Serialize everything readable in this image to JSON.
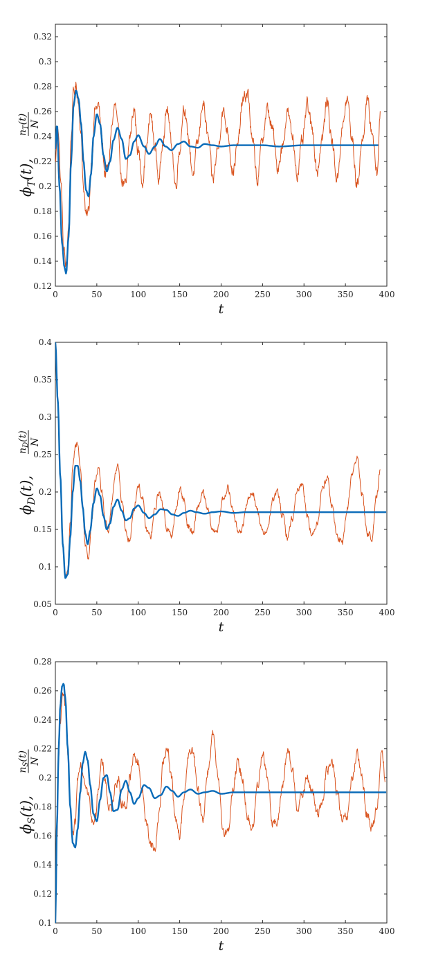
{
  "colors": {
    "blue": "#0a6bb8",
    "orange": "#d9531e",
    "axis": "#262626"
  },
  "chart_data": [
    {
      "type": "line",
      "title": "",
      "xlabel": "t",
      "ylabel": "ϕT(t), nT(t)/N",
      "ylabel_parts": {
        "phi": "ϕ",
        "phi_sub": "T",
        "arg": "(t),",
        "frac_num": "n",
        "frac_num_sub": "T",
        "frac_num_arg": "(t)",
        "frac_den": "N"
      },
      "xlim": [
        0,
        400
      ],
      "ylim": [
        0.12,
        0.33
      ],
      "xticks": [
        "0",
        "50",
        "100",
        "150",
        "200",
        "250",
        "300",
        "350",
        "400"
      ],
      "yticks": [
        "0.12",
        "0.14",
        "0.16",
        "0.18",
        "0.2",
        "0.22",
        "0.24",
        "0.26",
        "0.28",
        "0.3",
        "0.32"
      ],
      "series": [
        {
          "color": "#0a6bb8",
          "x": [
            0,
            2,
            5,
            8,
            11,
            13,
            16,
            19,
            22,
            25,
            28,
            31,
            34,
            37,
            40,
            43,
            46,
            50,
            54,
            58,
            62,
            66,
            70,
            75,
            80,
            85,
            90,
            95,
            100,
            107,
            113,
            120,
            126,
            133,
            140,
            148,
            155,
            163,
            172,
            180,
            190,
            200,
            215,
            230,
            250,
            270,
            300,
            330,
            360,
            390
          ],
          "y": [
            0.23,
            0.25,
            0.2,
            0.155,
            0.135,
            0.13,
            0.16,
            0.22,
            0.265,
            0.277,
            0.27,
            0.25,
            0.22,
            0.197,
            0.192,
            0.21,
            0.24,
            0.258,
            0.25,
            0.225,
            0.212,
            0.22,
            0.237,
            0.247,
            0.238,
            0.222,
            0.225,
            0.236,
            0.241,
            0.232,
            0.226,
            0.232,
            0.238,
            0.232,
            0.229,
            0.234,
            0.236,
            0.232,
            0.231,
            0.234,
            0.233,
            0.232,
            0.233,
            0.233,
            0.233,
            0.232,
            0.233,
            0.233,
            0.233,
            0.233
          ]
        },
        {
          "color": "#d9531e",
          "noise": 0.009,
          "x": [
            0,
            3,
            7,
            10,
            13,
            16,
            19,
            22,
            25,
            28,
            31,
            34,
            37,
            40,
            44,
            48,
            52,
            56,
            60,
            64,
            68,
            72,
            76,
            80,
            85,
            90,
            95,
            100,
            105,
            110,
            115,
            120,
            125,
            130,
            135,
            140,
            145,
            150,
            155,
            160,
            166,
            172,
            178,
            184,
            190,
            196,
            202,
            208,
            214,
            220,
            226,
            232,
            238,
            244,
            250,
            256,
            262,
            268,
            274,
            280,
            286,
            292,
            298,
            304,
            310,
            316,
            322,
            328,
            334,
            340,
            346,
            352,
            358,
            364,
            370,
            376,
            382,
            388,
            392
          ],
          "y": [
            0.22,
            0.25,
            0.2,
            0.15,
            0.135,
            0.17,
            0.24,
            0.275,
            0.28,
            0.268,
            0.24,
            0.2,
            0.175,
            0.18,
            0.225,
            0.262,
            0.265,
            0.238,
            0.21,
            0.215,
            0.248,
            0.265,
            0.242,
            0.205,
            0.2,
            0.24,
            0.262,
            0.228,
            0.205,
            0.232,
            0.258,
            0.232,
            0.205,
            0.24,
            0.262,
            0.235,
            0.2,
            0.23,
            0.265,
            0.24,
            0.21,
            0.235,
            0.268,
            0.24,
            0.205,
            0.23,
            0.26,
            0.245,
            0.212,
            0.232,
            0.268,
            0.275,
            0.235,
            0.205,
            0.24,
            0.262,
            0.245,
            0.215,
            0.232,
            0.26,
            0.24,
            0.21,
            0.235,
            0.265,
            0.245,
            0.212,
            0.24,
            0.268,
            0.235,
            0.205,
            0.245,
            0.27,
            0.238,
            0.2,
            0.235,
            0.268,
            0.245,
            0.21,
            0.258
          ]
        }
      ]
    },
    {
      "type": "line",
      "title": "",
      "xlabel": "t",
      "ylabel": "ϕD(t), nD(t)/N",
      "ylabel_parts": {
        "phi": "ϕ",
        "phi_sub": "D",
        "arg": "(t),",
        "frac_num": "n",
        "frac_num_sub": "D",
        "frac_num_arg": "(t)",
        "frac_den": "N"
      },
      "xlim": [
        0,
        400
      ],
      "ylim": [
        0.05,
        0.4
      ],
      "xticks": [
        "0",
        "50",
        "100",
        "150",
        "200",
        "250",
        "300",
        "350",
        "400"
      ],
      "yticks": [
        "0.05",
        "0.1",
        "0.15",
        "0.2",
        "0.25",
        "0.3",
        "0.35",
        "0.4"
      ],
      "series": [
        {
          "color": "#0a6bb8",
          "x": [
            0,
            3,
            6,
            9,
            12,
            15,
            18,
            21,
            24,
            27,
            30,
            33,
            36,
            39,
            42,
            46,
            50,
            54,
            58,
            62,
            66,
            70,
            75,
            80,
            85,
            90,
            95,
            100,
            107,
            113,
            120,
            127,
            134,
            141,
            148,
            155,
            163,
            170,
            180,
            190,
            200,
            215,
            230,
            250,
            270,
            300,
            330,
            360,
            400
          ],
          "y": [
            0.4,
            0.32,
            0.22,
            0.13,
            0.085,
            0.09,
            0.14,
            0.2,
            0.235,
            0.235,
            0.215,
            0.18,
            0.145,
            0.13,
            0.148,
            0.185,
            0.205,
            0.195,
            0.168,
            0.15,
            0.158,
            0.18,
            0.19,
            0.175,
            0.162,
            0.165,
            0.178,
            0.182,
            0.172,
            0.165,
            0.17,
            0.177,
            0.176,
            0.17,
            0.168,
            0.172,
            0.175,
            0.173,
            0.171,
            0.173,
            0.174,
            0.172,
            0.173,
            0.173,
            0.173,
            0.173,
            0.173,
            0.173,
            0.173
          ]
        },
        {
          "color": "#d9531e",
          "noise": 0.008,
          "x": [
            0,
            3,
            6,
            9,
            12,
            15,
            18,
            21,
            24,
            27,
            30,
            33,
            36,
            40,
            44,
            48,
            52,
            56,
            60,
            64,
            68,
            72,
            76,
            80,
            85,
            90,
            95,
            100,
            105,
            110,
            115,
            120,
            125,
            130,
            135,
            140,
            145,
            150,
            155,
            160,
            166,
            172,
            178,
            184,
            190,
            196,
            202,
            208,
            214,
            220,
            226,
            232,
            238,
            244,
            250,
            256,
            262,
            268,
            274,
            280,
            286,
            292,
            298,
            304,
            310,
            316,
            322,
            328,
            334,
            340,
            346,
            352,
            358,
            364,
            370,
            376,
            382,
            388,
            392
          ],
          "y": [
            0.4,
            0.32,
            0.22,
            0.13,
            0.085,
            0.095,
            0.16,
            0.23,
            0.262,
            0.265,
            0.235,
            0.18,
            0.128,
            0.112,
            0.16,
            0.215,
            0.232,
            0.2,
            0.16,
            0.15,
            0.185,
            0.222,
            0.232,
            0.19,
            0.145,
            0.135,
            0.18,
            0.21,
            0.19,
            0.148,
            0.14,
            0.175,
            0.2,
            0.18,
            0.15,
            0.14,
            0.172,
            0.205,
            0.19,
            0.155,
            0.145,
            0.18,
            0.198,
            0.175,
            0.148,
            0.15,
            0.19,
            0.205,
            0.178,
            0.148,
            0.152,
            0.19,
            0.2,
            0.175,
            0.145,
            0.15,
            0.188,
            0.2,
            0.168,
            0.14,
            0.165,
            0.205,
            0.21,
            0.17,
            0.14,
            0.16,
            0.205,
            0.22,
            0.18,
            0.14,
            0.13,
            0.175,
            0.225,
            0.245,
            0.2,
            0.145,
            0.14,
            0.195,
            0.228
          ]
        }
      ]
    },
    {
      "type": "line",
      "title": "",
      "xlabel": "t",
      "ylabel": "ϕS(t), nS(t)/N",
      "ylabel_parts": {
        "phi": "ϕ",
        "phi_sub": "S",
        "arg": "(t),",
        "frac_num": "n",
        "frac_num_sub": "S",
        "frac_num_arg": "(t)",
        "frac_den": "N"
      },
      "xlim": [
        0,
        400
      ],
      "ylim": [
        0.1,
        0.28
      ],
      "xticks": [
        "0",
        "50",
        "100",
        "150",
        "200",
        "250",
        "300",
        "350",
        "400"
      ],
      "yticks": [
        "0.1",
        "0.12",
        "0.14",
        "0.16",
        "0.18",
        "0.2",
        "0.22",
        "0.24",
        "0.26",
        "0.28"
      ],
      "series": [
        {
          "color": "#0a6bb8",
          "x": [
            0,
            2,
            4,
            6,
            8,
            10,
            12,
            15,
            18,
            21,
            24,
            27,
            30,
            33,
            36,
            39,
            42,
            46,
            50,
            54,
            58,
            62,
            66,
            70,
            75,
            80,
            85,
            90,
            95,
            100,
            107,
            113,
            120,
            127,
            134,
            141,
            148,
            155,
            163,
            172,
            180,
            190,
            200,
            215,
            230,
            250,
            270,
            300,
            330,
            360,
            400
          ],
          "y": [
            0.1,
            0.17,
            0.22,
            0.25,
            0.263,
            0.265,
            0.255,
            0.22,
            0.18,
            0.155,
            0.152,
            0.165,
            0.19,
            0.21,
            0.218,
            0.212,
            0.195,
            0.175,
            0.17,
            0.185,
            0.2,
            0.202,
            0.19,
            0.177,
            0.178,
            0.192,
            0.198,
            0.19,
            0.182,
            0.186,
            0.195,
            0.193,
            0.186,
            0.188,
            0.194,
            0.191,
            0.187,
            0.19,
            0.192,
            0.189,
            0.19,
            0.191,
            0.189,
            0.19,
            0.19,
            0.19,
            0.19,
            0.19,
            0.19,
            0.19,
            0.19
          ]
        },
        {
          "color": "#d9531e",
          "noise": 0.006,
          "x": [
            0,
            2,
            4,
            6,
            8,
            10,
            12,
            15,
            18,
            21,
            24,
            27,
            30,
            33,
            36,
            40,
            44,
            48,
            52,
            56,
            60,
            64,
            68,
            72,
            76,
            80,
            85,
            90,
            95,
            100,
            105,
            110,
            115,
            120,
            125,
            130,
            135,
            140,
            145,
            150,
            155,
            160,
            166,
            172,
            178,
            184,
            190,
            196,
            202,
            208,
            214,
            220,
            226,
            232,
            238,
            244,
            250,
            256,
            262,
            268,
            274,
            280,
            286,
            292,
            298,
            304,
            310,
            316,
            322,
            328,
            334,
            340,
            346,
            352,
            358,
            364,
            370,
            376,
            382,
            388,
            394,
            398
          ],
          "y": [
            0.1,
            0.16,
            0.21,
            0.24,
            0.256,
            0.258,
            0.248,
            0.215,
            0.18,
            0.158,
            0.168,
            0.2,
            0.212,
            0.205,
            0.198,
            0.188,
            0.17,
            0.172,
            0.195,
            0.21,
            0.2,
            0.18,
            0.178,
            0.195,
            0.2,
            0.182,
            0.18,
            0.2,
            0.215,
            0.21,
            0.19,
            0.168,
            0.155,
            0.15,
            0.175,
            0.21,
            0.222,
            0.2,
            0.17,
            0.16,
            0.185,
            0.215,
            0.218,
            0.19,
            0.172,
            0.205,
            0.23,
            0.2,
            0.165,
            0.162,
            0.19,
            0.21,
            0.2,
            0.172,
            0.165,
            0.195,
            0.218,
            0.2,
            0.17,
            0.168,
            0.195,
            0.218,
            0.205,
            0.18,
            0.188,
            0.2,
            0.19,
            0.175,
            0.185,
            0.205,
            0.21,
            0.19,
            0.17,
            0.172,
            0.2,
            0.215,
            0.2,
            0.175,
            0.165,
            0.18,
            0.22,
            0.2
          ]
        }
      ]
    }
  ]
}
